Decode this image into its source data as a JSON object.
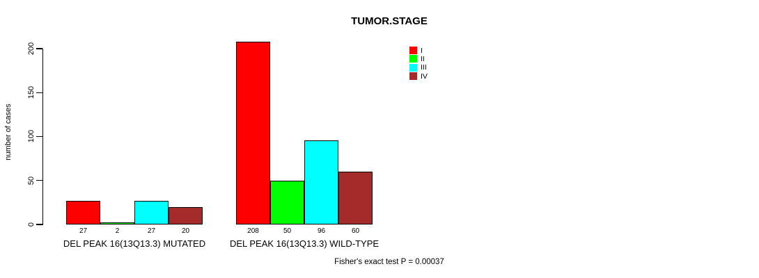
{
  "title": "TUMOR.STAGE",
  "y_axis_label": "number of cases",
  "footnote": "Fisher's exact test P = 0.00037",
  "legend": {
    "items": [
      {
        "label": "I",
        "color": "#ff0000"
      },
      {
        "label": "II",
        "color": "#00ff00"
      },
      {
        "label": "III",
        "color": "#00ffff"
      },
      {
        "label": "IV",
        "color": "#a52a2a"
      }
    ]
  },
  "chart_data": {
    "type": "bar",
    "title": "TUMOR.STAGE",
    "xlabel": "",
    "ylabel": "number of cases",
    "ylim": [
      0,
      200
    ],
    "yticks": [
      0,
      50,
      100,
      150,
      200
    ],
    "grid": false,
    "legend_position": "inside-top-right",
    "bar_border_color": "#000000",
    "series_colors": [
      "#ff0000",
      "#00ff00",
      "#00ffff",
      "#a52a2a"
    ],
    "series_names": [
      "I",
      "II",
      "III",
      "IV"
    ],
    "groups": [
      {
        "label": "DEL PEAK 16(13Q13.3) MUTATED",
        "values": [
          27,
          2,
          27,
          20
        ],
        "value_labels": [
          "27",
          "2",
          "27",
          "20"
        ]
      },
      {
        "label": "DEL PEAK 16(13Q13.3) WILD-TYPE",
        "values": [
          208,
          50,
          96,
          60
        ],
        "value_labels": [
          "208",
          "50",
          "96",
          "60"
        ]
      }
    ],
    "series": [
      {
        "name": "I",
        "values": [
          27,
          208
        ]
      },
      {
        "name": "II",
        "values": [
          2,
          50
        ]
      },
      {
        "name": "III",
        "values": [
          27,
          96
        ]
      },
      {
        "name": "IV",
        "values": [
          20,
          60
        ]
      }
    ],
    "annotation": "Fisher's exact test P = 0.00037"
  }
}
